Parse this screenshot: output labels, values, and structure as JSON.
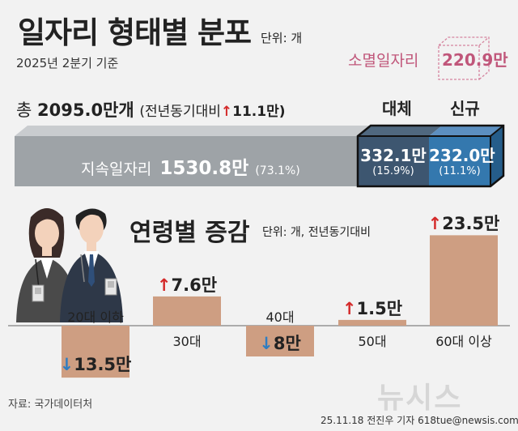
{
  "header": {
    "title": "일자리 형태별 분포",
    "unit": "단위: 개",
    "subtitle": "2025년 2분기 기준"
  },
  "extinct": {
    "label": "소멸일자리",
    "value": "220.9만"
  },
  "total": {
    "prefix": "총",
    "value": "2095.0만개",
    "yoy_label": "(전년동기대비",
    "yoy_arrow": "↑",
    "yoy_value": "11.1만)"
  },
  "breakdown": {
    "persistent": {
      "label": "지속일자리",
      "value": "1530.8만",
      "pct": "(73.1%)"
    },
    "replacement": {
      "header": "대체",
      "value": "332.1만",
      "pct": "(15.9%)"
    },
    "new": {
      "header": "신규",
      "value": "232.0만",
      "pct": "(11.1%)"
    }
  },
  "age_section": {
    "title": "연령별 증감",
    "unit": "단위: 개, 전년동기대비"
  },
  "colors": {
    "persistent": "#9ea3a7",
    "replacement": "#3d5670",
    "new": "#3478ae",
    "bar": "#ce9e82",
    "up": "#d42a2a",
    "down": "#2f7dc1",
    "extinct": "#c0567a"
  },
  "chart_data": {
    "type": "bar",
    "title": "연령별 증감",
    "ylabel": "단위: 개, 전년동기대비",
    "categories": [
      "20대 이하",
      "30대",
      "40대",
      "50대",
      "60대 이상"
    ],
    "values": [
      -13.5,
      7.6,
      -8,
      1.5,
      23.5
    ],
    "value_labels": [
      "13.5만",
      "7.6만",
      "8만",
      "1.5만",
      "23.5만"
    ],
    "arrows": [
      "↓",
      "↑",
      "↓",
      "↑",
      "↑"
    ],
    "ylim": [
      -15,
      25
    ]
  },
  "footer": {
    "source": "자료: 국가데이터처",
    "credit": "25.11.18 전진우 기자 618tue@newsis.com",
    "watermark": "뉴시스"
  }
}
